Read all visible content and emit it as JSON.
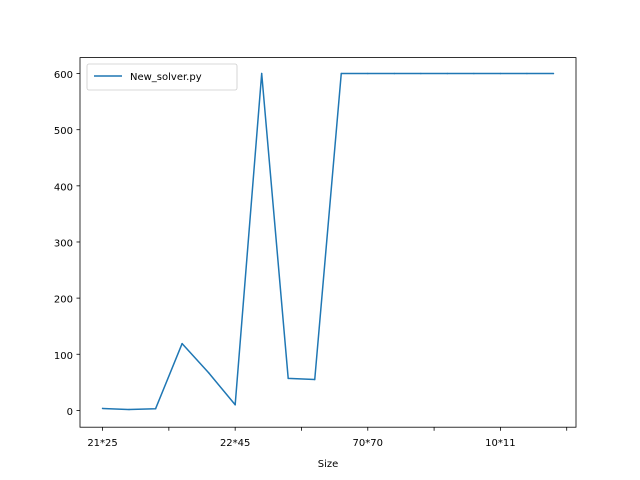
{
  "chart_data": {
    "type": "line",
    "xlabel": "Size",
    "ylabel": "",
    "title": "",
    "categories": [
      "21*25",
      "",
      "",
      "",
      "",
      "22*45",
      "",
      "",
      "",
      "",
      "70*70",
      "",
      "",
      "",
      "",
      "10*11",
      "",
      ""
    ],
    "series": [
      {
        "name": "New_solver.py",
        "color": "#1f77b4",
        "values": [
          3.5,
          1.5,
          3,
          119,
          67,
          10,
          600,
          57,
          55,
          600,
          600,
          600,
          600,
          600,
          600,
          600,
          600,
          600
        ]
      }
    ],
    "xticks": [
      {
        "index": 0,
        "label": "21*25"
      },
      {
        "index": 2.5,
        "label": ""
      },
      {
        "index": 5,
        "label": "22*45"
      },
      {
        "index": 7.5,
        "label": ""
      },
      {
        "index": 10,
        "label": "70*70"
      },
      {
        "index": 12.5,
        "label": ""
      },
      {
        "index": 15,
        "label": "10*11"
      },
      {
        "index": 17.5,
        "label": ""
      }
    ],
    "yticks": [
      0,
      100,
      200,
      300,
      400,
      500,
      600
    ],
    "ylim": [
      -29.925,
      628.425
    ],
    "xlim": [
      -0.85,
      17.85
    ],
    "legend_position": "top-left",
    "grid": false
  }
}
